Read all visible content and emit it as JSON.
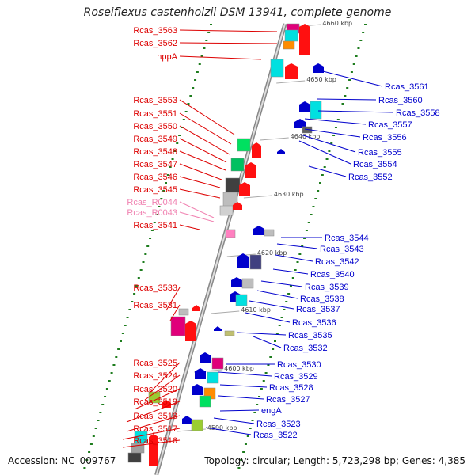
{
  "title": "Roseiflexus castenholzii DSM 13941, complete genome",
  "accession": "Accession: NC_009767",
  "topology": "Topology: circular; Length: 5,723,298 bp; Genes: 4,385",
  "kbp_markers": [
    "4660 kbp",
    "4650 kbp",
    "4640 kbp",
    "4630 kbp",
    "4620 kbp",
    "4610 kbp",
    "4600 kbp",
    "4590 kbp"
  ],
  "left_labels": [
    {
      "name": "Rcas_3563",
      "color": "#dd0000"
    },
    {
      "name": "Rcas_3562",
      "color": "#dd0000"
    },
    {
      "name": "hppA",
      "color": "#dd0000"
    },
    {
      "name": "Rcas_3553",
      "color": "#dd0000"
    },
    {
      "name": "Rcas_3551",
      "color": "#dd0000"
    },
    {
      "name": "Rcas_3550",
      "color": "#dd0000"
    },
    {
      "name": "Rcas_3549",
      "color": "#dd0000"
    },
    {
      "name": "Rcas_3548",
      "color": "#dd0000"
    },
    {
      "name": "Rcas_3547",
      "color": "#dd0000"
    },
    {
      "name": "Rcas_3546",
      "color": "#dd0000"
    },
    {
      "name": "Rcas_3545",
      "color": "#dd0000"
    },
    {
      "name": "Rcas_R0044",
      "color": "#f080b0"
    },
    {
      "name": "Rcas_R0043",
      "color": "#f080b0"
    },
    {
      "name": "Rcas_3541",
      "color": "#dd0000"
    },
    {
      "name": "Rcas_3533",
      "color": "#dd0000"
    },
    {
      "name": "Rcas_3531",
      "color": "#dd0000"
    },
    {
      "name": "Rcas_3525",
      "color": "#dd0000"
    },
    {
      "name": "Rcas_3524",
      "color": "#dd0000"
    },
    {
      "name": "Rcas_3520",
      "color": "#dd0000"
    },
    {
      "name": "Rcas_3519",
      "color": "#dd0000"
    },
    {
      "name": "Rcas_3518",
      "color": "#dd0000"
    },
    {
      "name": "Rcas_3517",
      "color": "#dd0000"
    },
    {
      "name": "Rcas_3516",
      "color": "#dd0000"
    }
  ],
  "right_labels": [
    {
      "name": "Rcas_3561",
      "color": "#0000cc"
    },
    {
      "name": "Rcas_3560",
      "color": "#0000cc"
    },
    {
      "name": "Rcas_3558",
      "color": "#0000cc"
    },
    {
      "name": "Rcas_3557",
      "color": "#0000cc"
    },
    {
      "name": "Rcas_3556",
      "color": "#0000cc"
    },
    {
      "name": "Rcas_3555",
      "color": "#0000cc"
    },
    {
      "name": "Rcas_3554",
      "color": "#0000cc"
    },
    {
      "name": "Rcas_3552",
      "color": "#0000cc"
    },
    {
      "name": "Rcas_3544",
      "color": "#0000cc"
    },
    {
      "name": "Rcas_3543",
      "color": "#0000cc"
    },
    {
      "name": "Rcas_3542",
      "color": "#0000cc"
    },
    {
      "name": "Rcas_3540",
      "color": "#0000cc"
    },
    {
      "name": "Rcas_3539",
      "color": "#0000cc"
    },
    {
      "name": "Rcas_3538",
      "color": "#0000cc"
    },
    {
      "name": "Rcas_3537",
      "color": "#0000cc"
    },
    {
      "name": "Rcas_3536",
      "color": "#0000cc"
    },
    {
      "name": "Rcas_3535",
      "color": "#0000cc"
    },
    {
      "name": "Rcas_3532",
      "color": "#0000cc"
    },
    {
      "name": "Rcas_3530",
      "color": "#0000cc"
    },
    {
      "name": "Rcas_3529",
      "color": "#0000cc"
    },
    {
      "name": "Rcas_3528",
      "color": "#0000cc"
    },
    {
      "name": "Rcas_3527",
      "color": "#0000cc"
    },
    {
      "name": "engA",
      "color": "#0000cc"
    },
    {
      "name": "Rcas_3523",
      "color": "#0000cc"
    },
    {
      "name": "Rcas_3522",
      "color": "#0000cc"
    }
  ]
}
